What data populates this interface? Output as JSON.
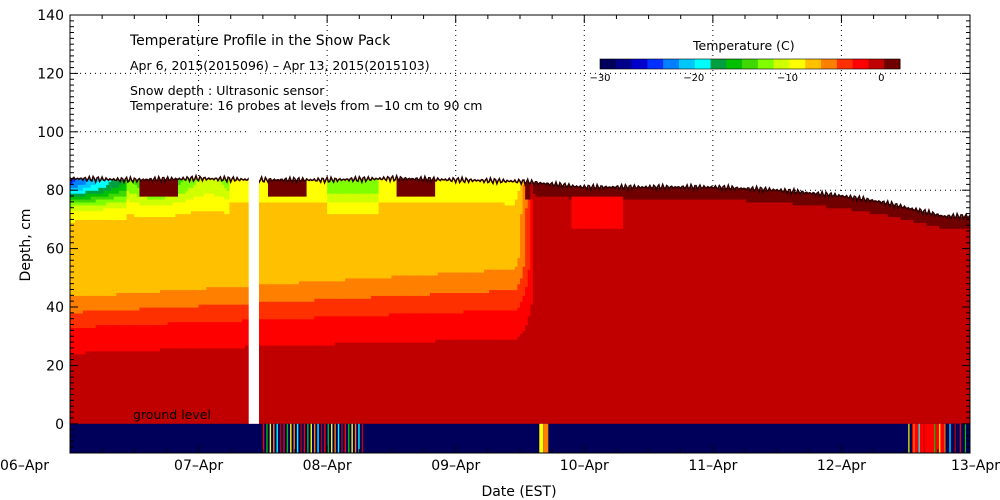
{
  "chart_data": {
    "type": "heatmap",
    "title": "Temperature Profile in the Snow Pack",
    "subtitle": "Apr  6, 2015(2015096) – Apr 13, 2015(2015103)",
    "annotations": [
      "Snow depth : Ultrasonic sensor",
      "Temperature: 16 probes at levels from −10 cm to 90 cm"
    ],
    "ground_label": "ground level",
    "xlabel": "Date (EST)",
    "ylabel": "Depth, cm",
    "x_ticks": [
      "06–Apr",
      "07–Apr",
      "08–Apr",
      "09–Apr",
      "10–Apr",
      "11–Apr",
      "12–Apr",
      "13–Apr"
    ],
    "xlim": [
      0,
      7
    ],
    "ylim": [
      -10,
      140
    ],
    "y_ticks": [
      0,
      20,
      40,
      60,
      80,
      100,
      120,
      140
    ],
    "y_tick_labels": [
      "0",
      "20",
      "40",
      "60",
      "80",
      "100",
      "120",
      "140"
    ],
    "grid": true,
    "data_gap": [
      1.39,
      1.47
    ],
    "snow_depth": {
      "x": [
        0,
        0.5,
        1,
        1.5,
        2,
        2.5,
        3,
        3.5,
        4,
        4.5,
        5,
        5.5,
        6,
        6.3,
        6.6,
        6.8,
        7
      ],
      "y": [
        84,
        83.5,
        84,
        83.5,
        83.5,
        84,
        83.5,
        83,
        81,
        81,
        81,
        80,
        78,
        76,
        73,
        71,
        71
      ]
    },
    "colorbar": {
      "title": "Temperature (C)",
      "range": [
        -30,
        2
      ],
      "tick_values": [
        -30,
        -20,
        -10,
        0
      ],
      "tick_labels": [
        "−30",
        "−20",
        "−10",
        "0"
      ],
      "colors": [
        "#00005a",
        "#00008b",
        "#0000cd",
        "#0030ff",
        "#0080ff",
        "#00c8ff",
        "#00ffff",
        "#00a040",
        "#00c000",
        "#40d800",
        "#80ff00",
        "#d0ff00",
        "#ffff00",
        "#ffc000",
        "#ff8000",
        "#ff3000",
        "#ff0000",
        "#c00000",
        "#700000"
      ]
    }
  }
}
